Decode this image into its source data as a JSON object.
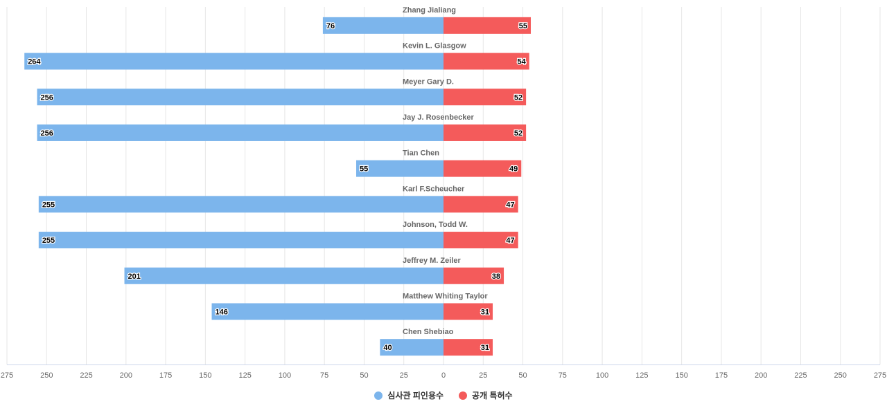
{
  "chart_data": {
    "type": "bar",
    "orientation": "horizontal-butterfly",
    "categories": [
      "Zhang Jialiang",
      "Kevin L. Glasgow",
      "Meyer Gary D.",
      "Jay J. Rosenbecker",
      "Tian Chen",
      "Karl F.Scheucher",
      "Johnson, Todd W.",
      "Jeffrey M. Zeiler",
      "Matthew Whiting Taylor",
      "Chen Shebiao"
    ],
    "series": [
      {
        "name": "심사관 피인용수",
        "color": "#7cb5ec",
        "side": "left",
        "values": [
          76,
          264,
          256,
          256,
          55,
          255,
          255,
          201,
          146,
          40
        ]
      },
      {
        "name": "공개 특허수",
        "color": "#f45b5b",
        "side": "right",
        "values": [
          55,
          54,
          52,
          52,
          49,
          47,
          47,
          38,
          31,
          31
        ]
      }
    ],
    "xlim": [
      -275,
      275
    ],
    "x_ticks": [
      275,
      250,
      225,
      200,
      175,
      150,
      125,
      100,
      75,
      50,
      25,
      0,
      25,
      50,
      75,
      100,
      125,
      150,
      175,
      200,
      225,
      250,
      275
    ],
    "title": "",
    "xlabel": "",
    "ylabel": "",
    "grid": true,
    "legend_position": "bottom-center"
  },
  "legend": {
    "item_1": "심사관 피인용수",
    "item_2": "공개 특허수"
  }
}
